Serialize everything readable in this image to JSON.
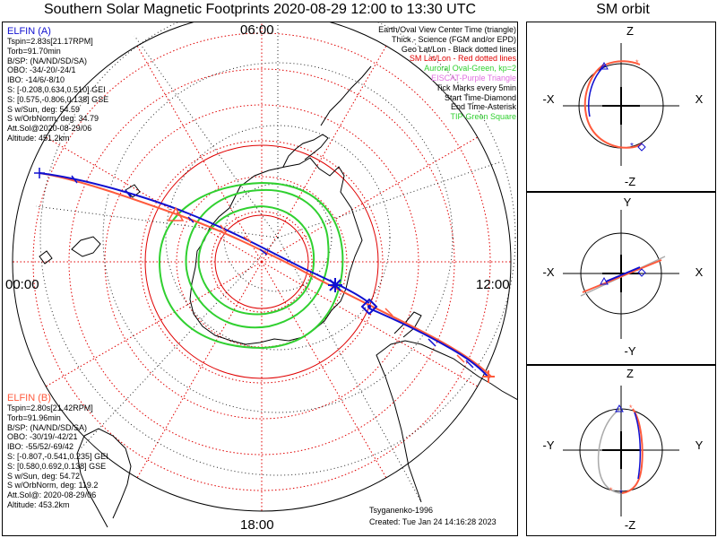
{
  "title": "Southern Solar Magnetic Footprints 2020-08-29 12:00 to 13:30 UTC",
  "orbit_title": "SM orbit",
  "hours": {
    "top": "06:00",
    "left": "00:00",
    "right": "12:00",
    "bottom": "18:00"
  },
  "sat_a": {
    "name": "ELFIN (A)",
    "color": "#1010d0",
    "lines": [
      "Tspin=2.83s[21.17RPM]",
      "Torb=91.70min",
      "B/SP: (NA/ND/SD/SA)",
      "OBO: -34/-20/-24/1",
      "IBO: -14/6/-8/10",
      "S: [-0.208,0.634,0.510] GEI",
      "S: [0.575,-0.806,0.138] GSE",
      "S w/Sun, deg: 54.59",
      "S w/OrbNorm, deg: 34.79",
      "Att.Sol@2020-08-29/06",
      "Altitude: 451.2km"
    ]
  },
  "sat_b": {
    "name": "ELFIN (B)",
    "color": "#ff5a3c",
    "lines": [
      "Tspin=2.80s[21.42RPM]",
      "Torb=91.96min",
      "B/SP: (NA/ND/SD/SA)",
      "OBO: -30/19/-42/21",
      "IBO: -55/52/-69/42",
      "S: [-0.807,-0.541,0.235] GEI",
      "S: [0.580,0.692,0.138] GSE",
      "S w/Sun, deg: 54.72",
      "S w/OrbNorm, deg: 119.2",
      "Att.Sol@: 2020-08-29/06",
      "Altitude: 453.2km"
    ]
  },
  "legend": [
    {
      "text": "Earth/Oval View Center Time (triangle)",
      "color": "#000000"
    },
    {
      "text": "Thick - Science (FGM and/or EPD)",
      "color": "#000000"
    },
    {
      "text": "Geo Lat/Lon - Black dotted lines",
      "color": "#000000"
    },
    {
      "text": "SM Lat/Lon - Red dotted lines",
      "color": "#e00000"
    },
    {
      "text": "Auroral Oval-Green, kp=2",
      "color": "#30d030"
    },
    {
      "text": "EISCAT-Purple Triangle",
      "color": "#e070e0"
    },
    {
      "text": "Tick Marks every 5min",
      "color": "#000000"
    },
    {
      "text": "Start Time-Diamond",
      "color": "#000000"
    },
    {
      "text": "End Time-Asterisk",
      "color": "#000000"
    },
    {
      "text": "TIP-Green Square",
      "color": "#30d030"
    }
  ],
  "credit": "Tsyganenko-1996",
  "created": "Created: Tue Jan 24 14:16:28 2023",
  "orbit_panels": [
    {
      "top": "Z",
      "bottom": "-Z",
      "left": "-X",
      "right": "X"
    },
    {
      "top": "Y",
      "bottom": "-Y",
      "left": "-X",
      "right": "X"
    },
    {
      "top": "Z",
      "bottom": "-Z",
      "left": "-Y",
      "right": "Y"
    }
  ],
  "colors": {
    "sat_a": "#1010d0",
    "sat_b": "#ff5a3c",
    "sm_grid": "#e00000",
    "oval": "#30d030",
    "eiscat": "#e070e0"
  }
}
